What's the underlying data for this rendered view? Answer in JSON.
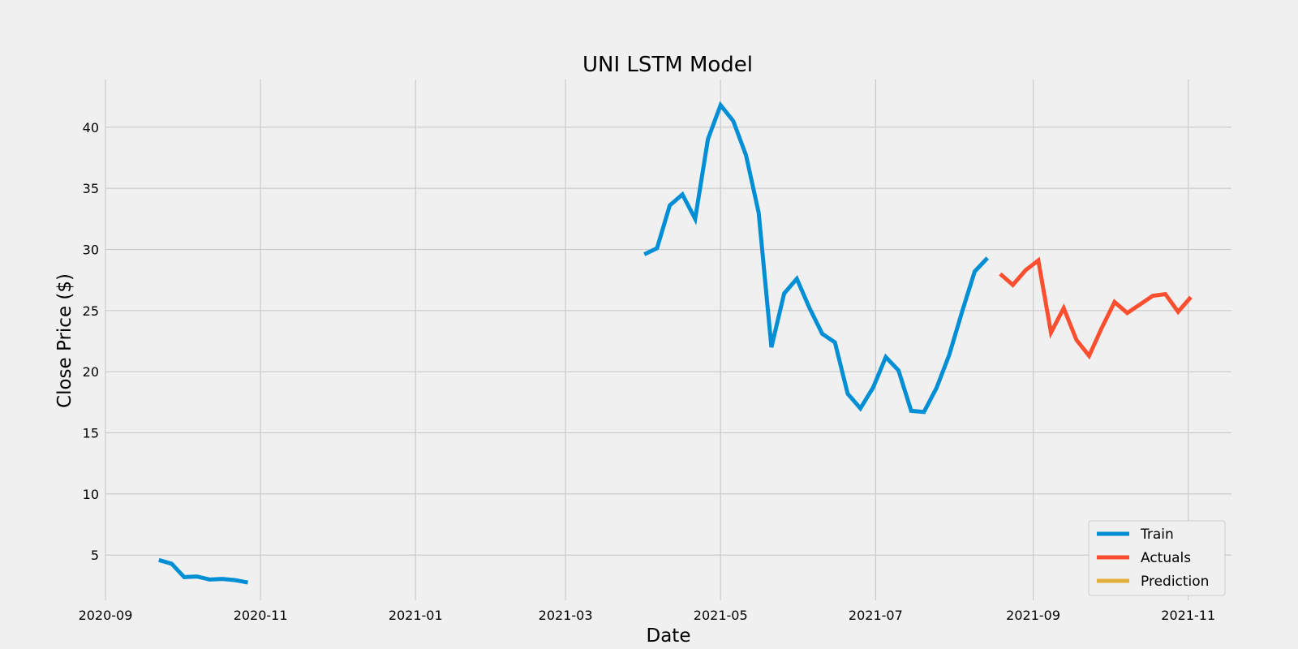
{
  "chart_data": {
    "type": "line",
    "title": "UNI LSTM Model",
    "xlabel": "Date",
    "ylabel": "Close Price ($)",
    "x_ticks": [
      "2020-09",
      "2020-11",
      "2021-01",
      "2021-03",
      "2021-05",
      "2021-07",
      "2021-09",
      "2021-11"
    ],
    "y_ticks": [
      5,
      10,
      15,
      20,
      25,
      30,
      35,
      40
    ],
    "xlim": [
      "2020-09-01",
      "2021-11-18"
    ],
    "ylim": [
      1.3,
      43.9
    ],
    "grid": true,
    "legend_position": "bottom-right",
    "series": [
      {
        "name": "Train",
        "color": "#008fd5",
        "segments": [
          [
            [
              "2020-09-22",
              4.6
            ],
            [
              "2020-09-27",
              4.3
            ],
            [
              "2020-10-02",
              3.2
            ],
            [
              "2020-10-07",
              3.25
            ],
            [
              "2020-10-12",
              3.0
            ],
            [
              "2020-10-17",
              3.05
            ],
            [
              "2020-10-22",
              2.95
            ],
            [
              "2020-10-27",
              2.75
            ]
          ],
          [
            [
              "2021-04-01",
              29.6
            ],
            [
              "2021-04-06",
              30.1
            ],
            [
              "2021-04-11",
              33.6
            ],
            [
              "2021-04-16",
              34.5
            ],
            [
              "2021-04-21",
              32.5
            ],
            [
              "2021-04-26",
              39.0
            ],
            [
              "2021-05-01",
              41.8
            ],
            [
              "2021-05-06",
              40.5
            ],
            [
              "2021-05-11",
              37.7
            ],
            [
              "2021-05-16",
              33.0
            ],
            [
              "2021-05-21",
              22.0
            ],
            [
              "2021-05-26",
              26.4
            ],
            [
              "2021-05-31",
              27.6
            ],
            [
              "2021-06-05",
              25.2
            ],
            [
              "2021-06-10",
              23.1
            ],
            [
              "2021-06-15",
              22.4
            ],
            [
              "2021-06-20",
              18.2
            ],
            [
              "2021-06-25",
              17.0
            ],
            [
              "2021-06-30",
              18.7
            ],
            [
              "2021-07-05",
              21.2
            ],
            [
              "2021-07-10",
              20.1
            ],
            [
              "2021-07-15",
              16.8
            ],
            [
              "2021-07-20",
              16.7
            ],
            [
              "2021-07-25",
              18.7
            ],
            [
              "2021-07-30",
              21.4
            ],
            [
              "2021-08-04",
              24.9
            ],
            [
              "2021-08-09",
              28.2
            ],
            [
              "2021-08-14",
              29.3
            ]
          ]
        ]
      },
      {
        "name": "Actuals",
        "color": "#fc4f30",
        "segments": [
          [
            [
              "2021-08-19",
              28.0
            ],
            [
              "2021-08-24",
              27.1
            ],
            [
              "2021-08-29",
              28.3
            ],
            [
              "2021-09-03",
              29.1
            ],
            [
              "2021-09-08",
              23.2
            ],
            [
              "2021-09-13",
              25.2
            ],
            [
              "2021-09-18",
              22.6
            ],
            [
              "2021-09-23",
              21.3
            ],
            [
              "2021-09-28",
              23.6
            ],
            [
              "2021-10-03",
              25.7
            ],
            [
              "2021-10-08",
              24.8
            ],
            [
              "2021-10-13",
              25.5
            ],
            [
              "2021-10-18",
              26.2
            ],
            [
              "2021-10-23",
              26.35
            ],
            [
              "2021-10-28",
              24.9
            ],
            [
              "2021-11-02",
              26.1
            ]
          ]
        ]
      },
      {
        "name": "Prediction",
        "color": "#e5ae38",
        "segments": []
      }
    ]
  }
}
